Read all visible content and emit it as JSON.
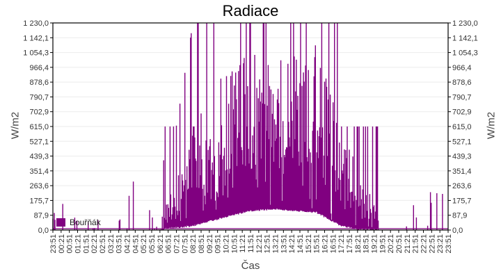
{
  "chart": {
    "title": "Radiace",
    "ylabel_left": "W/m2",
    "ylabel_right": "W/m2",
    "xlabel": "Čas",
    "legend_label": "Bouřňák",
    "series_color": "#800080"
  },
  "chart_data": {
    "type": "bar",
    "title": "Radiace",
    "xlabel": "Čas",
    "ylabel": "W/m2",
    "ylim": [
      0,
      1230
    ],
    "grid": true,
    "legend": {
      "position": "lower-left-inside",
      "entries": [
        "Bouřňák"
      ]
    },
    "y_ticks": [
      "0,0",
      "87,9",
      "175,7",
      "263,6",
      "351,4",
      "439,3",
      "527,1",
      "615,0",
      "702,9",
      "790,7",
      "878,6",
      "966,4",
      "1 054,3",
      "1 142,1",
      "1 230,0"
    ],
    "y_tick_values": [
      0,
      87.9,
      175.7,
      263.6,
      351.4,
      439.3,
      527.1,
      615.0,
      702.9,
      790.7,
      878.6,
      966.4,
      1054.3,
      1142.1,
      1230.0
    ],
    "x_ticks": [
      "23:51",
      "00:21",
      "00:51",
      "01:21",
      "01:51",
      "02:21",
      "02:51",
      "03:21",
      "03:51",
      "04:21",
      "04:51",
      "05:21",
      "05:51",
      "06:21",
      "06:51",
      "07:21",
      "07:51",
      "08:21",
      "08:51",
      "09:21",
      "09:51",
      "10:21",
      "10:51",
      "11:21",
      "11:51",
      "12:21",
      "12:51",
      "13:21",
      "13:51",
      "14:21",
      "14:51",
      "15:21",
      "15:51",
      "16:21",
      "16:51",
      "17:21",
      "17:51",
      "18:21",
      "18:51",
      "19:21",
      "19:51",
      "20:21",
      "20:51",
      "21:21",
      "21:51",
      "22:21",
      "22:51",
      "23:21",
      "23:51"
    ],
    "series": [
      {
        "name": "Bouřňák",
        "color": "#800080",
        "description": "Highly spiky per-minute radiation readings; baseline ~0 at night with sporadic spikes up to ~660 W/m2 before 07:30; dense spikes 07:30-18:30 reaching the 1230 cap repeatedly, many capped near 615; lower envelope forms a daytime arc peaking ~120 W/m2 near 13:00; sporadic spikes up to ~615 after 18:30",
        "envelope": [
          {
            "time": "23:51",
            "min": 0,
            "typical_max": 30,
            "peak": 220
          },
          {
            "time": "02:51",
            "min": 0,
            "typical_max": 60,
            "peak": 660
          },
          {
            "time": "03:21",
            "min": 0,
            "typical_max": 40,
            "peak": 420
          },
          {
            "time": "05:51",
            "min": 0,
            "typical_max": 20,
            "peak": 220
          },
          {
            "time": "07:21",
            "min": 10,
            "typical_max": 300,
            "peak": 620
          },
          {
            "time": "08:21",
            "min": 20,
            "typical_max": 600,
            "peak": 1230
          },
          {
            "time": "09:51",
            "min": 60,
            "typical_max": 900,
            "peak": 1230
          },
          {
            "time": "11:51",
            "min": 110,
            "typical_max": 1100,
            "peak": 1230
          },
          {
            "time": "13:21",
            "min": 120,
            "typical_max": 1000,
            "peak": 1230
          },
          {
            "time": "15:51",
            "min": 100,
            "typical_max": 1100,
            "peak": 1230
          },
          {
            "time": "17:21",
            "min": 20,
            "typical_max": 615,
            "peak": 1230
          },
          {
            "time": "18:21",
            "min": 0,
            "typical_max": 400,
            "peak": 615
          },
          {
            "time": "19:51",
            "min": 0,
            "typical_max": 100,
            "peak": 615
          },
          {
            "time": "23:51",
            "min": 0,
            "typical_max": 20,
            "peak": 220
          }
        ]
      }
    ]
  }
}
